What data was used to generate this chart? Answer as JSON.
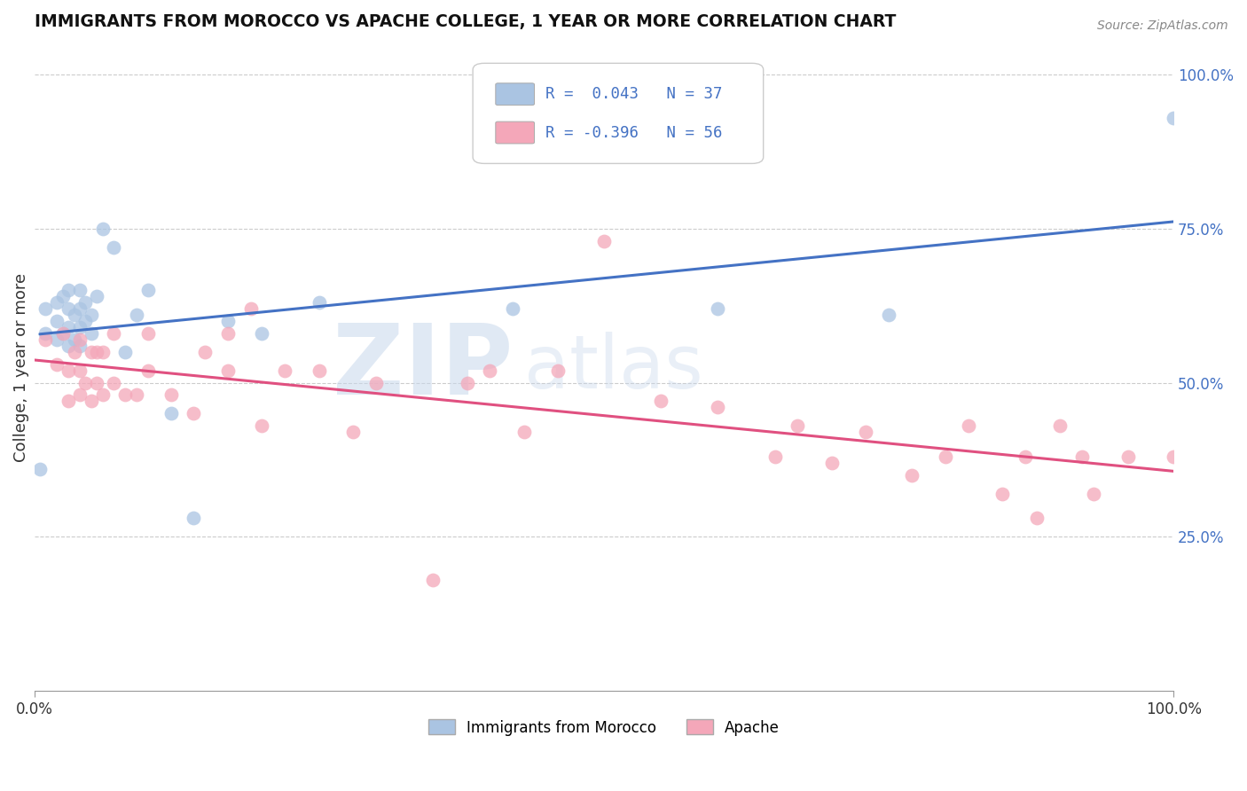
{
  "title": "IMMIGRANTS FROM MOROCCO VS APACHE COLLEGE, 1 YEAR OR MORE CORRELATION CHART",
  "source_text": "Source: ZipAtlas.com",
  "ylabel": "College, 1 year or more",
  "xlim": [
    0.0,
    1.0
  ],
  "ylim": [
    0.0,
    1.05
  ],
  "yticks": [
    0.25,
    0.5,
    0.75,
    1.0
  ],
  "ytick_labels": [
    "25.0%",
    "50.0%",
    "75.0%",
    "100.0%"
  ],
  "xticks": [
    0.0,
    1.0
  ],
  "xtick_labels": [
    "0.0%",
    "100.0%"
  ],
  "legend_line1": "R =  0.043   N = 37",
  "legend_line2": "R = -0.396   N = 56",
  "color_blue": "#aac4e2",
  "color_blue_line": "#4472c4",
  "color_pink": "#f4a7b9",
  "color_pink_line": "#e05080",
  "color_legend_blue_box": "#aac4e2",
  "color_legend_pink_box": "#f4a7b9",
  "background_color": "#ffffff",
  "grid_color": "#cccccc",
  "blue_x": [
    0.005,
    0.01,
    0.01,
    0.02,
    0.02,
    0.02,
    0.025,
    0.025,
    0.03,
    0.03,
    0.03,
    0.03,
    0.035,
    0.035,
    0.04,
    0.04,
    0.04,
    0.04,
    0.045,
    0.045,
    0.05,
    0.05,
    0.055,
    0.06,
    0.07,
    0.08,
    0.09,
    0.1,
    0.12,
    0.14,
    0.17,
    0.2,
    0.25,
    0.42,
    0.6,
    0.75,
    1.0
  ],
  "blue_y": [
    0.36,
    0.58,
    0.62,
    0.57,
    0.6,
    0.63,
    0.58,
    0.64,
    0.56,
    0.59,
    0.62,
    0.65,
    0.57,
    0.61,
    0.56,
    0.59,
    0.62,
    0.65,
    0.6,
    0.63,
    0.58,
    0.61,
    0.64,
    0.75,
    0.72,
    0.55,
    0.61,
    0.65,
    0.45,
    0.28,
    0.6,
    0.58,
    0.63,
    0.62,
    0.62,
    0.61,
    0.93
  ],
  "pink_x": [
    0.01,
    0.02,
    0.025,
    0.03,
    0.03,
    0.035,
    0.04,
    0.04,
    0.04,
    0.045,
    0.05,
    0.05,
    0.055,
    0.055,
    0.06,
    0.06,
    0.07,
    0.07,
    0.08,
    0.09,
    0.1,
    0.1,
    0.12,
    0.14,
    0.15,
    0.17,
    0.17,
    0.19,
    0.2,
    0.22,
    0.25,
    0.28,
    0.3,
    0.35,
    0.38,
    0.4,
    0.43,
    0.46,
    0.5,
    0.55,
    0.6,
    0.65,
    0.67,
    0.7,
    0.73,
    0.77,
    0.8,
    0.82,
    0.85,
    0.87,
    0.88,
    0.9,
    0.92,
    0.93,
    0.96,
    1.0
  ],
  "pink_y": [
    0.57,
    0.53,
    0.58,
    0.47,
    0.52,
    0.55,
    0.48,
    0.52,
    0.57,
    0.5,
    0.47,
    0.55,
    0.5,
    0.55,
    0.48,
    0.55,
    0.5,
    0.58,
    0.48,
    0.48,
    0.52,
    0.58,
    0.48,
    0.45,
    0.55,
    0.52,
    0.58,
    0.62,
    0.43,
    0.52,
    0.52,
    0.42,
    0.5,
    0.18,
    0.5,
    0.52,
    0.42,
    0.52,
    0.73,
    0.47,
    0.46,
    0.38,
    0.43,
    0.37,
    0.42,
    0.35,
    0.38,
    0.43,
    0.32,
    0.38,
    0.28,
    0.43,
    0.38,
    0.32,
    0.38,
    0.38
  ]
}
